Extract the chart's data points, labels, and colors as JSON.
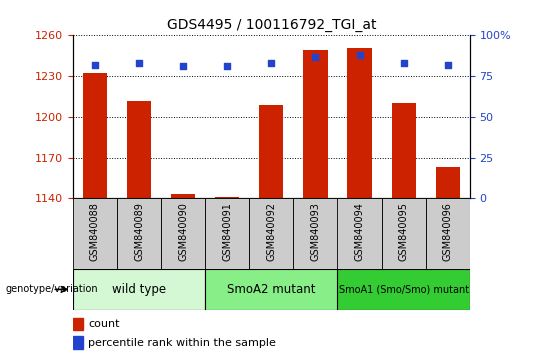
{
  "title": "GDS4495 / 100116792_TGI_at",
  "samples": [
    "GSM840088",
    "GSM840089",
    "GSM840090",
    "GSM840091",
    "GSM840092",
    "GSM840093",
    "GSM840094",
    "GSM840095",
    "GSM840096"
  ],
  "counts": [
    1232,
    1212,
    1143,
    1141,
    1209,
    1249,
    1251,
    1210,
    1163
  ],
  "percentile_ranks": [
    82,
    83,
    81,
    81,
    83,
    87,
    88,
    83,
    82
  ],
  "ylim_left": [
    1140,
    1260
  ],
  "ylim_right": [
    0,
    100
  ],
  "yticks_left": [
    1140,
    1170,
    1200,
    1230,
    1260
  ],
  "yticks_right": [
    0,
    25,
    50,
    75,
    100
  ],
  "bar_color": "#cc2200",
  "dot_color": "#2244cc",
  "bar_width": 0.55,
  "groups": [
    {
      "label": "wild type",
      "start": 0,
      "end": 3,
      "color": "#d4f7d4"
    },
    {
      "label": "SmoA2 mutant",
      "start": 3,
      "end": 6,
      "color": "#88ee88"
    },
    {
      "label": "SmoA1 (Smo/Smo) mutant",
      "start": 6,
      "end": 9,
      "color": "#33cc33"
    }
  ],
  "legend_bar_label": "count",
  "legend_dot_label": "percentile rank within the sample",
  "genotype_label": "genotype/variation",
  "tick_label_color_left": "#cc2200",
  "tick_label_color_right": "#2244cc",
  "xtick_bg_color": "#cccccc",
  "background_color": "#ffffff"
}
